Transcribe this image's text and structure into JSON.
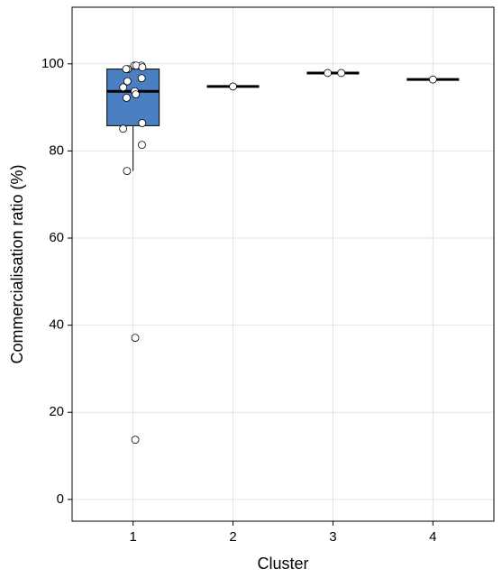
{
  "chart_data": {
    "type": "box",
    "x_label": "Cluster",
    "y_label": "Commercialisation ratio (%)",
    "categories": [
      "1",
      "2",
      "3",
      "4"
    ],
    "boxes": [
      {
        "q1": 85.8,
        "median": 93.7,
        "q3": 98.8,
        "whisker_low": 75.4,
        "whisker_high": 99.6
      },
      {
        "q1": 94.8,
        "median": 94.8,
        "q3": 94.8,
        "whisker_low": 94.8,
        "whisker_high": 94.8
      },
      {
        "q1": 97.9,
        "median": 97.9,
        "q3": 97.9,
        "whisker_low": 97.9,
        "whisker_high": 97.9
      },
      {
        "q1": 96.4,
        "median": 96.4,
        "q3": 96.4,
        "whisker_low": 96.4,
        "whisker_high": 96.4
      }
    ],
    "points": [
      [
        99.6,
        98.8,
        99.6,
        99.6,
        98.8,
        99.2,
        94.6,
        96.7,
        96.0,
        93.7,
        93.0,
        92.2,
        86.4,
        85.1,
        81.4,
        75.4,
        37.1,
        13.7
      ],
      [
        94.8
      ],
      [
        97.9,
        97.9
      ],
      [
        96.4
      ]
    ],
    "color": "#4a7fc1",
    "ylim": [
      -5,
      113
    ],
    "yticks": [
      0,
      20,
      40,
      60,
      80,
      100
    ],
    "grid": true
  }
}
